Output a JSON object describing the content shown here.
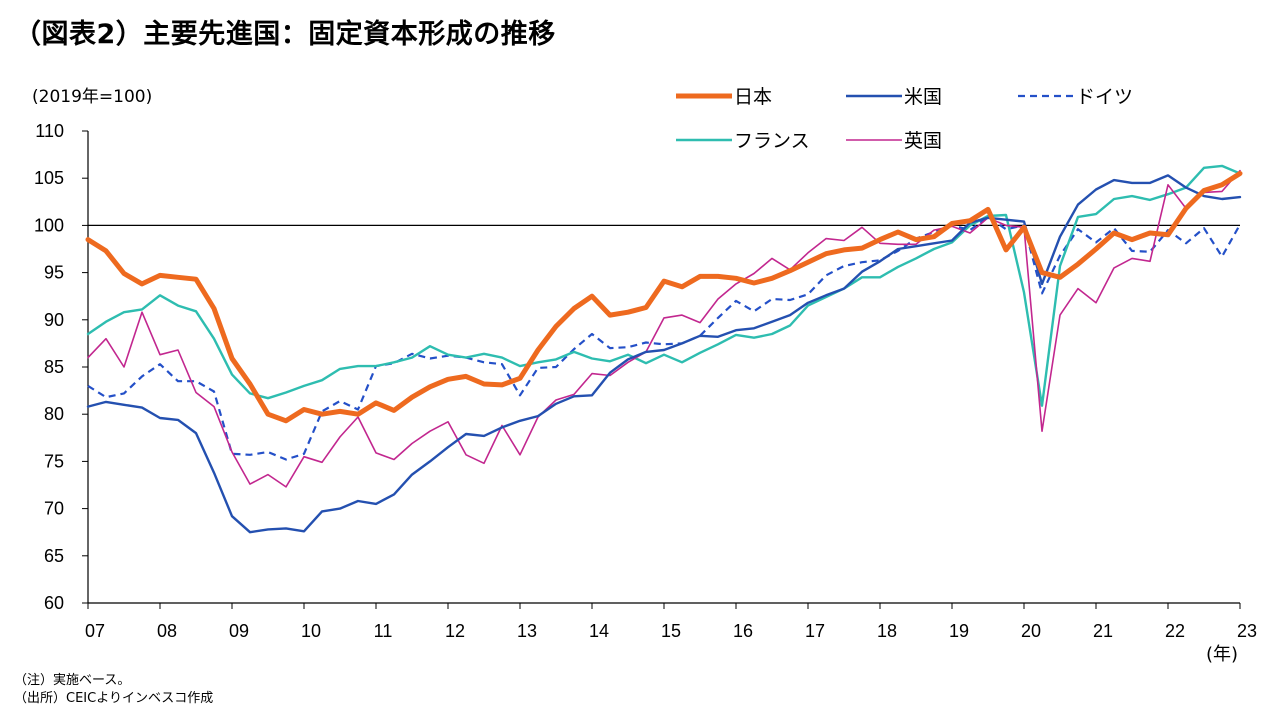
{
  "title": "（図表2）主要先進国：固定資本形成の推移",
  "y_unit_label": "(2019年=100)",
  "x_unit_label": "(年)",
  "notes": [
    "（注）実施ベース。",
    "（出所）CEICよりインベスコ作成"
  ],
  "colors": {
    "japan": "#ee6a1f",
    "us": "#2450b0",
    "germany": "#2450c8",
    "france": "#2ebdb0",
    "uk": "#c2278f"
  },
  "chart_data": {
    "type": "line",
    "title": "（図表2）主要先進国：固定資本形成の推移",
    "ylabel": "(2019年=100)",
    "xlabel": "(年)",
    "ylim": [
      60,
      110
    ],
    "yticks": [
      "60",
      "65",
      "70",
      "75",
      "80",
      "85",
      "90",
      "95",
      "100",
      "105",
      "110"
    ],
    "xticks": [
      "07",
      "08",
      "09",
      "10",
      "11",
      "12",
      "13",
      "14",
      "15",
      "16",
      "17",
      "18",
      "19",
      "20",
      "21",
      "22",
      "23"
    ],
    "reference_line": 100,
    "x_start": 2007.0,
    "x_step": 0.25,
    "legend": "top-right",
    "series": [
      {
        "name": "日本",
        "color": "#ee6a1f",
        "style": "solid-thick",
        "values": [
          98.5,
          97.3,
          94.9,
          93.8,
          94.7,
          94.5,
          94.3,
          91.2,
          85.9,
          83.2,
          80.0,
          79.3,
          80.5,
          80.0,
          80.3,
          80.0,
          81.2,
          80.4,
          81.8,
          82.9,
          83.7,
          84.0,
          83.2,
          83.1,
          83.8,
          86.8,
          89.3,
          91.2,
          92.5,
          90.5,
          90.8,
          91.3,
          94.1,
          93.5,
          94.6,
          94.6,
          94.4,
          93.9,
          94.4,
          95.2,
          96.1,
          97.0,
          97.4,
          97.6,
          98.5,
          99.3,
          98.5,
          98.8,
          100.2,
          100.5,
          101.7,
          97.4,
          99.8,
          95.0,
          94.5,
          95.9,
          97.5,
          99.2,
          98.5,
          99.2,
          99.0,
          101.8,
          103.7,
          104.3,
          105.5
        ]
      },
      {
        "name": "米国",
        "color": "#2450b0",
        "style": "solid",
        "values": [
          80.8,
          81.3,
          81.0,
          80.7,
          79.6,
          79.4,
          78.0,
          73.8,
          69.2,
          67.5,
          67.8,
          67.9,
          67.6,
          69.7,
          70.0,
          70.8,
          70.5,
          71.5,
          73.6,
          75.0,
          76.5,
          77.9,
          77.7,
          78.6,
          79.3,
          79.8,
          81.1,
          81.9,
          82.0,
          84.4,
          85.8,
          86.6,
          86.8,
          87.5,
          88.3,
          88.2,
          88.9,
          89.1,
          89.8,
          90.5,
          91.8,
          92.6,
          93.3,
          95.1,
          96.2,
          97.5,
          97.8,
          98.1,
          98.4,
          100.3,
          100.8,
          100.6,
          100.4,
          93.8,
          98.8,
          102.2,
          103.8,
          104.8,
          104.5,
          104.5,
          105.3,
          104.0,
          103.1,
          102.8,
          103.0
        ]
      },
      {
        "name": "ドイツ",
        "color": "#2450c8",
        "style": "dashed",
        "values": [
          83.0,
          81.8,
          82.2,
          84.0,
          85.3,
          83.5,
          83.5,
          82.4,
          75.8,
          75.7,
          76.0,
          75.2,
          75.8,
          80.3,
          81.4,
          80.5,
          85.1,
          85.4,
          86.4,
          85.9,
          86.2,
          86.0,
          85.5,
          85.3,
          82.0,
          84.9,
          85.0,
          86.9,
          88.5,
          87.0,
          87.1,
          87.6,
          87.4,
          87.5,
          88.3,
          90.2,
          92.0,
          90.9,
          92.2,
          92.1,
          92.7,
          94.7,
          95.7,
          96.1,
          96.3,
          97.3,
          98.6,
          99.3,
          100.0,
          99.5,
          100.9,
          99.6,
          100.0,
          92.8,
          96.8,
          99.6,
          98.2,
          99.7,
          97.3,
          97.2,
          99.5,
          98.1,
          99.7,
          96.7,
          100.1
        ]
      },
      {
        "name": "フランス",
        "color": "#2ebdb0",
        "style": "solid",
        "values": [
          88.5,
          89.8,
          90.8,
          91.1,
          92.6,
          91.5,
          90.9,
          88.0,
          84.2,
          82.2,
          81.7,
          82.3,
          83.0,
          83.6,
          84.8,
          85.1,
          85.1,
          85.5,
          86.0,
          87.2,
          86.3,
          86.0,
          86.4,
          86.0,
          85.1,
          85.5,
          85.8,
          86.6,
          85.9,
          85.6,
          86.3,
          85.4,
          86.3,
          85.5,
          86.5,
          87.4,
          88.4,
          88.1,
          88.5,
          89.4,
          91.5,
          92.4,
          93.3,
          94.5,
          94.5,
          95.6,
          96.5,
          97.5,
          98.2,
          100.0,
          101.0,
          101.1,
          92.9,
          80.9,
          95.7,
          100.9,
          101.2,
          102.8,
          103.1,
          102.7,
          103.3,
          104.0,
          106.1,
          106.3,
          105.5
        ]
      },
      {
        "name": "英国",
        "color": "#c2278f",
        "style": "solid",
        "values": [
          86.0,
          88.0,
          85.0,
          90.8,
          86.3,
          86.8,
          82.3,
          80.8,
          76.0,
          72.6,
          73.6,
          72.3,
          75.5,
          74.9,
          77.6,
          79.7,
          75.9,
          75.2,
          76.9,
          78.2,
          79.2,
          75.7,
          74.8,
          78.8,
          75.7,
          79.7,
          81.5,
          82.1,
          84.3,
          84.1,
          85.5,
          86.6,
          90.2,
          90.5,
          89.7,
          92.2,
          93.8,
          94.9,
          96.5,
          95.3,
          97.1,
          98.6,
          98.4,
          99.8,
          98.1,
          98.0,
          98.0,
          99.5,
          99.9,
          99.2,
          100.8,
          100.0,
          99.8,
          78.2,
          90.5,
          93.3,
          91.8,
          95.5,
          96.5,
          96.2,
          104.3,
          101.8,
          103.5,
          103.6,
          105.8
        ]
      }
    ]
  }
}
